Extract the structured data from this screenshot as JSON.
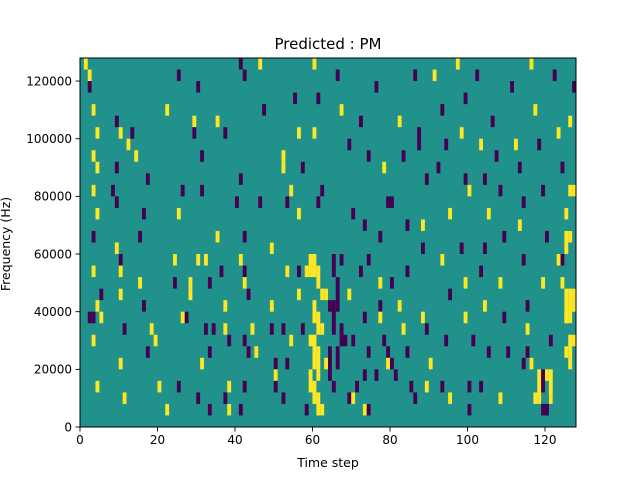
{
  "chart_data": {
    "type": "heatmap",
    "title": "Predicted : PM",
    "xlabel": "Time step",
    "ylabel": "Frequency (Hz)",
    "xlim": [
      0,
      128
    ],
    "ylim": [
      0,
      128000
    ],
    "xticks": [
      0,
      20,
      40,
      60,
      80,
      100,
      120
    ],
    "xtick_labels": [
      "0",
      "20",
      "40",
      "60",
      "80",
      "100",
      "120"
    ],
    "yticks": [
      0,
      20000,
      40000,
      60000,
      80000,
      100000,
      120000
    ],
    "ytick_labels": [
      "0",
      "20000",
      "40000",
      "60000",
      "80000",
      "100000",
      "120000"
    ],
    "grid": false,
    "colorscale": {
      "background": "#21918c",
      "low": "#440154",
      "high": "#fde725"
    },
    "background_value": 0,
    "value_levels": [
      -1,
      0,
      1
    ],
    "cell_size": {
      "time_steps": 1,
      "frequency_hz": 4000
    },
    "cells": [
      [
        1,
        124000,
        1
      ],
      [
        2,
        120000,
        1
      ],
      [
        2,
        116000,
        -1
      ],
      [
        3,
        108000,
        1
      ],
      [
        4,
        100000,
        1
      ],
      [
        3,
        92000,
        1
      ],
      [
        4,
        88000,
        1
      ],
      [
        3,
        80000,
        1
      ],
      [
        4,
        72000,
        1
      ],
      [
        3,
        64000,
        -1
      ],
      [
        3,
        52000,
        1
      ],
      [
        5,
        44000,
        -1
      ],
      [
        4,
        40000,
        1
      ],
      [
        2,
        36000,
        -1
      ],
      [
        3,
        36000,
        -1
      ],
      [
        5,
        36000,
        1
      ],
      [
        3,
        28000,
        1
      ],
      [
        4,
        12000,
        1
      ],
      [
        9,
        104000,
        -1
      ],
      [
        10,
        100000,
        1
      ],
      [
        9,
        88000,
        -1
      ],
      [
        8,
        80000,
        -1
      ],
      [
        9,
        76000,
        -1
      ],
      [
        9,
        60000,
        1
      ],
      [
        10,
        56000,
        -1
      ],
      [
        10,
        52000,
        1
      ],
      [
        10,
        44000,
        1
      ],
      [
        11,
        32000,
        -1
      ],
      [
        10,
        20000,
        1
      ],
      [
        11,
        8000,
        1
      ],
      [
        13,
        100000,
        -1
      ],
      [
        12,
        96000,
        1
      ],
      [
        14,
        92000,
        1
      ],
      [
        17,
        84000,
        -1
      ],
      [
        15,
        64000,
        -1
      ],
      [
        16,
        72000,
        -1
      ],
      [
        15,
        48000,
        1
      ],
      [
        16,
        40000,
        -1
      ],
      [
        18,
        32000,
        1
      ],
      [
        19,
        28000,
        1
      ],
      [
        17,
        24000,
        -1
      ],
      [
        20,
        12000,
        1
      ],
      [
        22,
        108000,
        1
      ],
      [
        25,
        120000,
        -1
      ],
      [
        25,
        72000,
        1
      ],
      [
        26,
        80000,
        -1
      ],
      [
        24,
        56000,
        1
      ],
      [
        24,
        48000,
        -1
      ],
      [
        27,
        36000,
        -1
      ],
      [
        26,
        36000,
        1
      ],
      [
        28,
        48000,
        1
      ],
      [
        28,
        44000,
        1
      ],
      [
        25,
        12000,
        -1
      ],
      [
        22,
        4000,
        1
      ],
      [
        30,
        116000,
        -1
      ],
      [
        29,
        104000,
        1
      ],
      [
        29,
        100000,
        -1
      ],
      [
        31,
        92000,
        -1
      ],
      [
        31,
        80000,
        -1
      ],
      [
        32,
        56000,
        1
      ],
      [
        33,
        48000,
        -1
      ],
      [
        30,
        56000,
        1
      ],
      [
        32,
        32000,
        -1
      ],
      [
        34,
        32000,
        -1
      ],
      [
        33,
        24000,
        -1
      ],
      [
        31,
        20000,
        1
      ],
      [
        30,
        8000,
        -1
      ],
      [
        33,
        4000,
        -1
      ],
      [
        35,
        104000,
        1
      ],
      [
        37,
        100000,
        -1
      ],
      [
        35,
        64000,
        1
      ],
      [
        36,
        52000,
        -1
      ],
      [
        37,
        40000,
        1
      ],
      [
        37,
        32000,
        1
      ],
      [
        38,
        28000,
        -1
      ],
      [
        38,
        12000,
        1
      ],
      [
        37,
        8000,
        -1
      ],
      [
        38,
        4000,
        1
      ],
      [
        41,
        124000,
        -1
      ],
      [
        42,
        120000,
        -1
      ],
      [
        41,
        84000,
        -1
      ],
      [
        40,
        76000,
        -1
      ],
      [
        42,
        64000,
        -1
      ],
      [
        41,
        56000,
        1
      ],
      [
        42,
        52000,
        -1
      ],
      [
        42,
        48000,
        1
      ],
      [
        42,
        28000,
        -1
      ],
      [
        42,
        12000,
        -1
      ],
      [
        41,
        4000,
        -1
      ],
      [
        46,
        124000,
        1
      ],
      [
        47,
        108000,
        -1
      ],
      [
        46,
        76000,
        -1
      ],
      [
        43,
        44000,
        -1
      ],
      [
        44,
        32000,
        1
      ],
      [
        43,
        24000,
        -1
      ],
      [
        45,
        24000,
        1
      ],
      [
        49,
        60000,
        1
      ],
      [
        49,
        40000,
        1
      ],
      [
        49,
        32000,
        -1
      ],
      [
        50,
        20000,
        -1
      ],
      [
        50,
        16000,
        1
      ],
      [
        50,
        12000,
        -1
      ],
      [
        52,
        92000,
        1
      ],
      [
        52,
        88000,
        1
      ],
      [
        54,
        80000,
        1
      ],
      [
        53,
        76000,
        -1
      ],
      [
        53,
        52000,
        1
      ],
      [
        52,
        32000,
        -1
      ],
      [
        54,
        28000,
        1
      ],
      [
        53,
        20000,
        -1
      ],
      [
        52,
        8000,
        -1
      ],
      [
        55,
        112000,
        -1
      ],
      [
        56,
        100000,
        1
      ],
      [
        57,
        88000,
        -1
      ],
      [
        56,
        72000,
        1
      ],
      [
        56,
        52000,
        -1
      ],
      [
        56,
        44000,
        1
      ],
      [
        57,
        32000,
        -1
      ],
      [
        58,
        4000,
        -1
      ],
      [
        60,
        124000,
        1
      ],
      [
        61,
        112000,
        -1
      ],
      [
        60,
        100000,
        1
      ],
      [
        62,
        80000,
        -1
      ],
      [
        61,
        76000,
        -1
      ],
      [
        63,
        44000,
        1
      ],
      [
        64,
        40000,
        -1
      ],
      [
        63,
        20000,
        1
      ],
      [
        65,
        12000,
        -1
      ],
      [
        60,
        28000,
        1
      ],
      [
        66,
        120000,
        -1
      ],
      [
        67,
        108000,
        1
      ],
      [
        69,
        96000,
        -1
      ],
      [
        70,
        72000,
        -1
      ],
      [
        69,
        44000,
        1
      ],
      [
        70,
        28000,
        -1
      ],
      [
        71,
        12000,
        -1
      ],
      [
        72,
        104000,
        -1
      ],
      [
        74,
        92000,
        -1
      ],
      [
        73,
        68000,
        -1
      ],
      [
        74,
        56000,
        -1
      ],
      [
        72,
        52000,
        -1
      ],
      [
        73,
        36000,
        -1
      ],
      [
        74,
        24000,
        -1
      ],
      [
        73,
        16000,
        -1
      ],
      [
        76,
        116000,
        -1
      ],
      [
        78,
        88000,
        1
      ],
      [
        77,
        64000,
        -1
      ],
      [
        77,
        48000,
        1
      ],
      [
        77,
        40000,
        -1
      ],
      [
        77,
        36000,
        1
      ],
      [
        76,
        16000,
        -1
      ],
      [
        79,
        24000,
        -1
      ],
      [
        82,
        104000,
        1
      ],
      [
        83,
        92000,
        -1
      ],
      [
        84,
        68000,
        -1
      ],
      [
        84,
        52000,
        -1
      ],
      [
        82,
        40000,
        1
      ],
      [
        83,
        32000,
        1
      ],
      [
        84,
        24000,
        -1
      ],
      [
        85,
        12000,
        -1
      ],
      [
        86,
        120000,
        -1
      ],
      [
        87,
        100000,
        -1
      ],
      [
        87,
        96000,
        -1
      ],
      [
        89,
        84000,
        -1
      ],
      [
        88,
        68000,
        1
      ],
      [
        88,
        60000,
        -1
      ],
      [
        89,
        32000,
        -1
      ],
      [
        90,
        20000,
        1
      ],
      [
        89,
        12000,
        1
      ],
      [
        91,
        120000,
        1
      ],
      [
        93,
        108000,
        -1
      ],
      [
        94,
        96000,
        -1
      ],
      [
        92,
        88000,
        -1
      ],
      [
        95,
        72000,
        1
      ],
      [
        93,
        56000,
        1
      ],
      [
        95,
        44000,
        -1
      ],
      [
        94,
        28000,
        -1
      ],
      [
        93,
        12000,
        -1
      ],
      [
        95,
        8000,
        1
      ],
      [
        97,
        124000,
        1
      ],
      [
        99,
        112000,
        -1
      ],
      [
        98,
        100000,
        1
      ],
      [
        99,
        84000,
        -1
      ],
      [
        100,
        80000,
        1
      ],
      [
        98,
        60000,
        -1
      ],
      [
        99,
        48000,
        1
      ],
      [
        99,
        36000,
        1
      ],
      [
        101,
        28000,
        -1
      ],
      [
        100,
        12000,
        -1
      ],
      [
        100,
        4000,
        -1
      ],
      [
        102,
        120000,
        -1
      ],
      [
        103,
        96000,
        1
      ],
      [
        104,
        84000,
        -1
      ],
      [
        105,
        72000,
        1
      ],
      [
        104,
        60000,
        -1
      ],
      [
        103,
        52000,
        -1
      ],
      [
        104,
        40000,
        1
      ],
      [
        105,
        24000,
        -1
      ],
      [
        103,
        12000,
        -1
      ],
      [
        106,
        104000,
        -1
      ],
      [
        107,
        92000,
        -1
      ],
      [
        108,
        80000,
        -1
      ],
      [
        109,
        64000,
        -1
      ],
      [
        108,
        48000,
        1
      ],
      [
        109,
        36000,
        -1
      ],
      [
        110,
        24000,
        -1
      ],
      [
        108,
        8000,
        1
      ],
      [
        111,
        116000,
        -1
      ],
      [
        112,
        96000,
        1
      ],
      [
        113,
        88000,
        -1
      ],
      [
        114,
        76000,
        -1
      ],
      [
        113,
        68000,
        1
      ],
      [
        114,
        56000,
        -1
      ],
      [
        115,
        40000,
        -1
      ],
      [
        115,
        32000,
        1
      ],
      [
        114,
        20000,
        -1
      ],
      [
        116,
        124000,
        1
      ],
      [
        117,
        108000,
        1
      ],
      [
        118,
        96000,
        -1
      ],
      [
        119,
        80000,
        -1
      ],
      [
        120,
        64000,
        -1
      ],
      [
        119,
        48000,
        1
      ],
      [
        121,
        28000,
        -1
      ],
      [
        120,
        16000,
        1
      ],
      [
        121,
        8000,
        -1
      ],
      [
        122,
        120000,
        -1
      ],
      [
        123,
        100000,
        1
      ],
      [
        124,
        88000,
        -1
      ],
      [
        125,
        72000,
        1
      ],
      [
        124,
        56000,
        -1
      ],
      [
        125,
        36000,
        1
      ],
      [
        126,
        20000,
        1
      ],
      [
        126,
        104000,
        1
      ],
      [
        127,
        116000,
        -1
      ]
    ],
    "bands": [
      [
        59,
        52000,
        60000,
        1
      ],
      [
        60,
        52000,
        60000,
        1
      ],
      [
        61,
        48000,
        56000,
        1
      ],
      [
        58,
        52000,
        56000,
        1
      ],
      [
        62,
        44000,
        48000,
        1
      ],
      [
        60,
        36000,
        44000,
        1
      ],
      [
        61,
        32000,
        40000,
        1
      ],
      [
        59,
        28000,
        32000,
        1
      ],
      [
        60,
        20000,
        32000,
        1
      ],
      [
        61,
        16000,
        28000,
        1
      ],
      [
        59,
        12000,
        20000,
        1
      ],
      [
        60,
        8000,
        16000,
        1
      ],
      [
        61,
        4000,
        12000,
        1
      ],
      [
        62,
        4000,
        8000,
        1
      ],
      [
        62,
        32000,
        36000,
        1
      ],
      [
        65,
        52000,
        60000,
        -1
      ],
      [
        66,
        40000,
        52000,
        -1
      ],
      [
        67,
        28000,
        36000,
        -1
      ],
      [
        68,
        28000,
        32000,
        -1
      ],
      [
        67,
        56000,
        60000,
        -1
      ],
      [
        65,
        32000,
        44000,
        -1
      ],
      [
        64,
        16000,
        28000,
        -1
      ],
      [
        66,
        20000,
        28000,
        -1
      ],
      [
        69,
        8000,
        12000,
        -1
      ],
      [
        70,
        8000,
        12000,
        1
      ],
      [
        80,
        48000,
        52000,
        -1
      ],
      [
        79,
        76000,
        80000,
        -1
      ],
      [
        80,
        76000,
        80000,
        -1
      ],
      [
        79,
        20000,
        24000,
        1
      ],
      [
        80,
        20000,
        24000,
        -1
      ],
      [
        81,
        16000,
        20000,
        -1
      ],
      [
        78,
        28000,
        32000,
        -1
      ],
      [
        88,
        36000,
        40000,
        1
      ],
      [
        86,
        8000,
        12000,
        -1
      ],
      [
        123,
        56000,
        60000,
        1
      ],
      [
        124,
        48000,
        52000,
        1
      ],
      [
        125,
        36000,
        48000,
        1
      ],
      [
        126,
        36000,
        48000,
        1
      ],
      [
        127,
        40000,
        48000,
        1
      ],
      [
        125,
        60000,
        68000,
        1
      ],
      [
        126,
        64000,
        68000,
        1
      ],
      [
        126,
        80000,
        84000,
        1
      ],
      [
        127,
        80000,
        84000,
        1
      ],
      [
        126,
        24000,
        32000,
        1
      ],
      [
        127,
        28000,
        32000,
        1
      ],
      [
        125,
        24000,
        28000,
        1
      ],
      [
        119,
        4000,
        8000,
        -1
      ],
      [
        120,
        4000,
        8000,
        -1
      ],
      [
        118,
        8000,
        20000,
        1
      ],
      [
        119,
        12000,
        20000,
        -1
      ],
      [
        121,
        8000,
        20000,
        1
      ],
      [
        117,
        8000,
        12000,
        1
      ],
      [
        116,
        20000,
        24000,
        1
      ],
      [
        115,
        24000,
        28000,
        -1
      ],
      [
        73,
        4000,
        8000,
        1
      ],
      [
        74,
        4000,
        8000,
        -1
      ]
    ]
  }
}
